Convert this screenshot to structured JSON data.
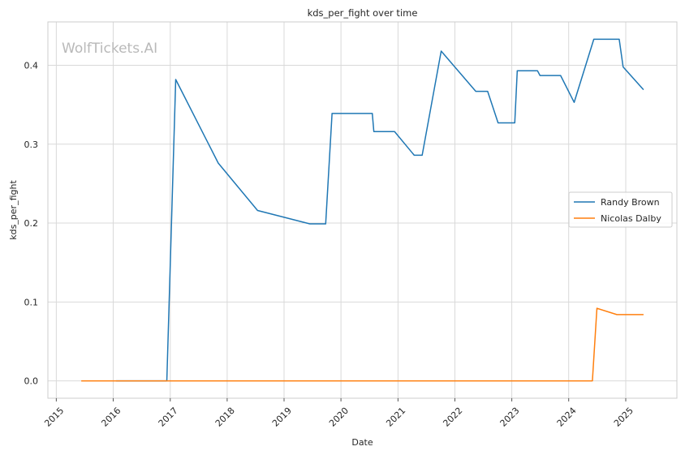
{
  "watermark": "WolfTickets.AI",
  "chart_data": {
    "type": "line",
    "title": "kds_per_fight over time",
    "xlabel": "Date",
    "ylabel": "kds_per_fight",
    "x_ticks": [
      "2015",
      "2016",
      "2017",
      "2018",
      "2019",
      "2020",
      "2021",
      "2022",
      "2023",
      "2024",
      "2025"
    ],
    "y_ticks": [
      "0.0",
      "0.1",
      "0.2",
      "0.3",
      "0.4"
    ],
    "xlim": [
      "2014-11-08",
      "2025-11-25"
    ],
    "ylim": [
      -0.022,
      0.455
    ],
    "grid": true,
    "legend_position": "center-right",
    "series": [
      {
        "name": "Randy Brown",
        "color": "#1f77b4",
        "points": [
          [
            "2016-01-20",
            0.0
          ],
          [
            "2016-12-10",
            0.0
          ],
          [
            "2017-02-05",
            0.382
          ],
          [
            "2017-11-05",
            0.276
          ],
          [
            "2018-07-15",
            0.216
          ],
          [
            "2019-06-15",
            0.199
          ],
          [
            "2019-09-25",
            0.199
          ],
          [
            "2019-11-05",
            0.339
          ],
          [
            "2020-07-20",
            0.339
          ],
          [
            "2020-07-30",
            0.316
          ],
          [
            "2020-12-10",
            0.316
          ],
          [
            "2021-04-15",
            0.286
          ],
          [
            "2021-06-05",
            0.286
          ],
          [
            "2021-10-05",
            0.418
          ],
          [
            "2022-05-15",
            0.367
          ],
          [
            "2022-07-30",
            0.367
          ],
          [
            "2022-10-05",
            0.327
          ],
          [
            "2023-01-20",
            0.327
          ],
          [
            "2023-02-05",
            0.393
          ],
          [
            "2023-06-15",
            0.393
          ],
          [
            "2023-07-01",
            0.387
          ],
          [
            "2023-11-10",
            0.387
          ],
          [
            "2024-02-05",
            0.353
          ],
          [
            "2024-06-10",
            0.433
          ],
          [
            "2024-11-20",
            0.433
          ],
          [
            "2024-12-15",
            0.398
          ],
          [
            "2025-04-25",
            0.369
          ]
        ]
      },
      {
        "name": "Nicolas Dalby",
        "color": "#ff7f0e",
        "points": [
          [
            "2015-06-10",
            0.0
          ],
          [
            "2024-06-01",
            0.0
          ],
          [
            "2024-06-30",
            0.092
          ],
          [
            "2024-11-05",
            0.084
          ],
          [
            "2025-04-25",
            0.084
          ]
        ]
      }
    ]
  }
}
